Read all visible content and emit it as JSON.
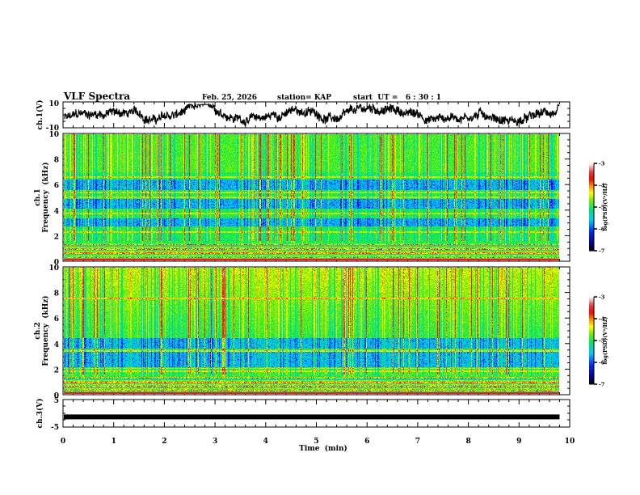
{
  "header": {
    "title": "VLF Spectra",
    "date": "Feb. 25, 2026",
    "station": "station= KAP",
    "start_ut": "start  UT =   6 : 30 : 1"
  },
  "chart_data": [
    {
      "type": "line",
      "name": "ch1-waveform",
      "ylabel": "ch.1(V)",
      "ylim": [
        -10,
        10
      ],
      "yticks": [
        "10",
        "-10"
      ],
      "xlim": [
        0,
        10
      ],
      "x_end": 9.8,
      "description_series": "waveform fluctuating roughly between -8 and 7 V"
    },
    {
      "type": "heatmap",
      "name": "ch1-spectrogram",
      "ylabel_line1": "ch.1",
      "ylabel_line2": "Frequency  (kHz)",
      "ylim": [
        0,
        10
      ],
      "yticks": [
        "0",
        "2",
        "4",
        "6",
        "8",
        "10"
      ],
      "xlim": [
        0,
        10
      ],
      "x_end": 9.8,
      "colorbar": {
        "label": "log(PSD)(V²/Hz)",
        "range": [
          -7,
          -3
        ],
        "ticks": [
          "-3",
          "-4",
          "-5",
          "-6",
          "-7"
        ]
      },
      "blue_bands_khz": [
        [
          2.7,
          3.3
        ],
        [
          4.1,
          4.9
        ],
        [
          5.6,
          6.4
        ]
      ],
      "bright_lines_khz": [
        0.9,
        1.1,
        2.2,
        3.7,
        5.0,
        5.4,
        6.6
      ]
    },
    {
      "type": "heatmap",
      "name": "ch2-spectrogram",
      "ylabel_line1": "ch.2",
      "ylabel_line2": "Frequency  (kHz)",
      "ylim": [
        0,
        10
      ],
      "yticks": [
        "0",
        "2",
        "4",
        "6",
        "8",
        "10"
      ],
      "xlim": [
        0,
        10
      ],
      "x_end": 9.8,
      "colorbar": {
        "label": "log(PSD)(V²/Hz)",
        "range": [
          -7,
          -3
        ],
        "ticks": [
          "-3",
          "-4",
          "-5",
          "-6",
          "-7"
        ]
      },
      "blue_bands_khz": [
        [
          2.1,
          3.3
        ],
        [
          3.6,
          4.4
        ]
      ],
      "bright_lines_khz": [
        0.8,
        1.0,
        1.8,
        2.0,
        3.4,
        7.6
      ]
    },
    {
      "type": "line",
      "name": "ch3-waveform",
      "ylabel": "ch.3(V)",
      "ylim": [
        -5,
        5
      ],
      "yticks": [
        "5",
        "-5"
      ],
      "xlim": [
        0,
        10
      ],
      "x_end": 9.8,
      "level_v": -1.3,
      "xlabel": "Time  (min)",
      "xticks": [
        "0",
        "1",
        "2",
        "3",
        "4",
        "5",
        "6",
        "7",
        "8",
        "9",
        "10"
      ]
    }
  ]
}
